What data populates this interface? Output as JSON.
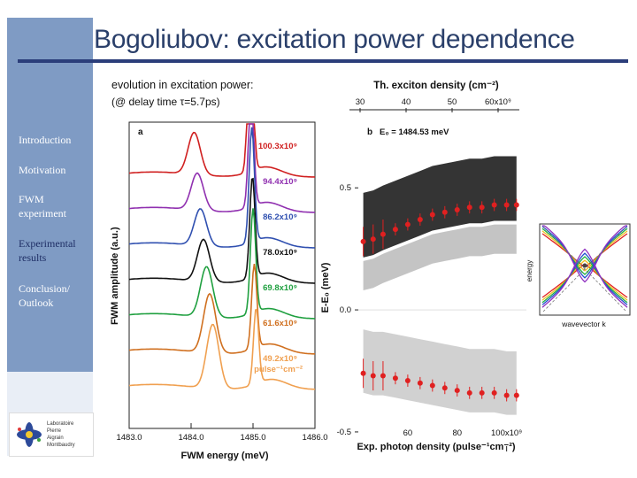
{
  "slide": {
    "title": "Bogoliubov: excitation power dependence",
    "subtitle_line1": "evolution in excitation power:",
    "subtitle_line2": "(@ delay time τ=5.7ps)"
  },
  "sidebar": {
    "items": [
      {
        "label_lines": [
          "Introduction"
        ],
        "active": false
      },
      {
        "label_lines": [
          "Motivation"
        ],
        "active": false
      },
      {
        "label_lines": [
          "FWM",
          "experiment"
        ],
        "active": false
      },
      {
        "label_lines": [
          "Experimental",
          "results"
        ],
        "active": true
      },
      {
        "label_lines": [
          "Conclusion/",
          "Outlook"
        ],
        "active": false
      }
    ],
    "logo_lines": [
      "Laboratoire",
      "Pierre",
      "Aigrain",
      "Montbaudry"
    ]
  },
  "colors": {
    "sidebar": "#7f9bc4",
    "title": "#2a3f6a",
    "rule": "#2b3e7a",
    "data_red": "#e02020"
  },
  "chart_data": [
    {
      "type": "line",
      "panel_label": "a",
      "xlabel": "FWM energy (meV)",
      "ylabel": "FWM amplitude (a.u.)",
      "xlim": [
        1483.0,
        1486.0
      ],
      "x_ticks": [
        "1483.0",
        "1484.0",
        "1485.0",
        "1486.0"
      ],
      "series": [
        {
          "name": "100.3x10⁹",
          "color": "#d02020",
          "peaks": [
            1484.05,
            1484.96
          ],
          "peak_heights": [
            0.25,
            1.0
          ]
        },
        {
          "name": "94.4x10⁹",
          "color": "#9030b0",
          "peaks": [
            1484.1,
            1484.97
          ],
          "peak_heights": [
            0.22,
            0.7
          ]
        },
        {
          "name": "86.2x10⁹",
          "color": "#3050b0",
          "peaks": [
            1484.15,
            1484.98
          ],
          "peak_heights": [
            0.22,
            0.68
          ]
        },
        {
          "name": "78.0x10⁹",
          "color": "#111111",
          "peaks": [
            1484.2,
            1484.99
          ],
          "peak_heights": [
            0.25,
            0.6
          ]
        },
        {
          "name": "69.8x10⁹",
          "color": "#20a040",
          "peaks": [
            1484.25,
            1485.0
          ],
          "peak_heights": [
            0.3,
            0.62
          ]
        },
        {
          "name": "61.6x10⁹",
          "color": "#d07020",
          "peaks": [
            1484.3,
            1485.02
          ],
          "peak_heights": [
            0.35,
            0.5
          ]
        },
        {
          "name": "49.2x10⁹ pulse⁻¹cm⁻²",
          "color": "#f0a050",
          "peaks": [
            1484.35,
            1485.05
          ],
          "peak_heights": [
            0.38,
            0.45
          ]
        }
      ]
    },
    {
      "type": "heatmap",
      "panel_label": "b",
      "annotation": "E₀ = 1484.53 meV",
      "top_axis_label": "Th. exciton density (cm⁻²)",
      "top_ticks": [
        "30",
        "40",
        "50",
        "60x10⁹"
      ],
      "xlabel": "Exp. photon density (pulse⁻¹cm⁻²)",
      "x_ticks": [
        "60",
        "80",
        "100x10⁹"
      ],
      "xlim": [
        40,
        108
      ],
      "ylabel": "E-E₀ (meV)",
      "y_ticks": [
        "0.5",
        "0.0",
        "-0.5"
      ],
      "ylim": [
        -0.58,
        0.78
      ],
      "upper_branch": {
        "x": [
          42,
          46,
          50,
          55,
          60,
          65,
          70,
          75,
          80,
          85,
          90,
          95,
          100,
          104
        ],
        "y": [
          0.28,
          0.29,
          0.31,
          0.33,
          0.35,
          0.37,
          0.39,
          0.4,
          0.41,
          0.42,
          0.42,
          0.43,
          0.43,
          0.43
        ]
      },
      "lower_branch": {
        "x": [
          42,
          46,
          50,
          55,
          60,
          65,
          70,
          75,
          80,
          85,
          90,
          95,
          100,
          104
        ],
        "y": [
          -0.26,
          -0.27,
          -0.27,
          -0.28,
          -0.29,
          -0.3,
          -0.31,
          -0.32,
          -0.33,
          -0.34,
          -0.34,
          -0.34,
          -0.35,
          -0.35
        ]
      }
    },
    {
      "type": "line",
      "panel_label": "",
      "xlabel": "wavevector k",
      "ylabel": "energy",
      "series_colors": [
        "#e02020",
        "#f0c020",
        "#20b040",
        "#2050d0",
        "#9030c0"
      ]
    }
  ]
}
